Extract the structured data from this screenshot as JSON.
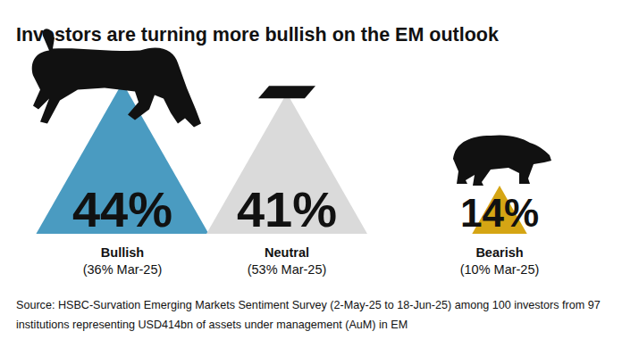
{
  "chart_data": {
    "type": "triangle",
    "title": "Investors are turning more bullish on the EM outlook",
    "categories": [
      "Bullish",
      "Neutral",
      "Bearish"
    ],
    "values": [
      44,
      41,
      14
    ],
    "value_labels": [
      "44%",
      "41%",
      "14%"
    ],
    "data_labels": true,
    "tick_labels": false,
    "colors": [
      "#4a9bc1",
      "#dadada",
      "#d5a514"
    ],
    "comparison_labels": [
      "(36% Mar-25)",
      "(53% Mar-25)",
      "(10% Mar-25)"
    ],
    "source": "Source: HSBC-Survation Emerging Markets Sentiment Survey (2-May-25 to 18-Jun-25) among 100 investors from 97 institutions representing USD414bn of assets under management (AuM) in EM"
  }
}
